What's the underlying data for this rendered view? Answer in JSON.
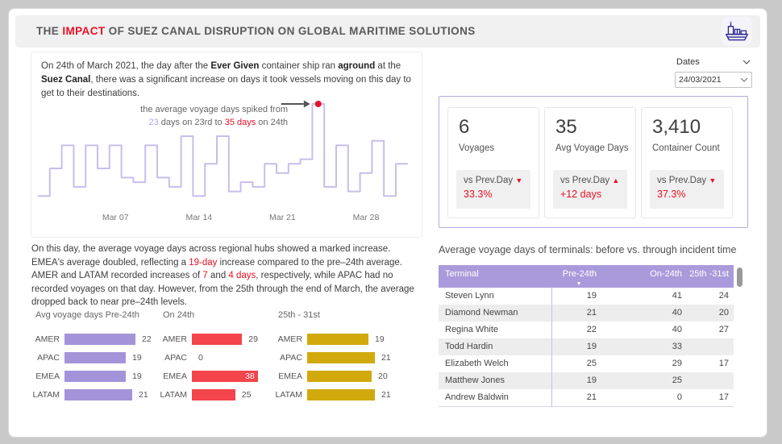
{
  "colors": {
    "accent_red": "#e81123",
    "lavender_line": "#c9bdeb",
    "bar_purple": "#a394da",
    "bar_red": "#f4444c",
    "bar_gold": "#d1a90d",
    "table_header_purple": "#a99bdb"
  },
  "header": {
    "title": [
      {
        "t": "THE "
      },
      {
        "t": "IMPACT",
        "red": true
      },
      {
        "t": " OF SUEZ CANAL DISRUPTION ON GLOBAL MARITIME SOLUTIONS"
      }
    ]
  },
  "intro": {
    "text": [
      {
        "t": "On 24th of March 2021, the day after the "
      },
      {
        "t": "Ever Given",
        "b": true
      },
      {
        "t": " container ship ran "
      },
      {
        "t": "aground",
        "b": true
      },
      {
        "t": " at the "
      },
      {
        "t": "Suez Canal",
        "b": true
      },
      {
        "t": ", there was a significant increase on days it took vessels moving on this day to get to their destinations."
      }
    ]
  },
  "slicer": {
    "label": "Dates",
    "value": "24/03/2021"
  },
  "chart_data": [
    {
      "type": "line",
      "title": "",
      "x": [
        1,
        2,
        3,
        4,
        5,
        6,
        7,
        8,
        9,
        10,
        11,
        12,
        13,
        14,
        15,
        16,
        17,
        18,
        19,
        20,
        21,
        22,
        23,
        24,
        25,
        26,
        27,
        28,
        29,
        30,
        31
      ],
      "values": [
        15,
        21,
        26,
        17,
        26,
        21,
        26,
        19,
        18,
        26,
        19,
        17,
        28,
        15,
        22,
        28,
        16,
        18,
        17,
        22,
        20,
        22,
        23,
        35,
        17,
        26,
        16,
        20,
        27,
        15,
        22
      ],
      "x_tick_labels": [
        {
          "day": 7,
          "label": "Mar 07"
        },
        {
          "day": 14,
          "label": "Mar 14"
        },
        {
          "day": 21,
          "label": "Mar 21"
        },
        {
          "day": 28,
          "label": "Mar 28"
        }
      ],
      "ylim": [
        14,
        36
      ],
      "grid": false,
      "line_color": "#c9bdeb",
      "marker": {
        "day": 24,
        "value": 35,
        "color": "#e8112b"
      },
      "annotation": {
        "line1": "the average voyage days spiked from",
        "line2": [
          {
            "t": "23",
            "purple": true
          },
          {
            "t": " days on 23rd to "
          },
          {
            "t": "35 days",
            "red": true
          },
          {
            "t": " on 24th"
          }
        ]
      }
    },
    {
      "type": "bar",
      "orientation": "horizontal",
      "title": "Avg voyage days Pre-24th",
      "categories": [
        "AMER",
        "APAC",
        "EMEA",
        "LATAM"
      ],
      "values": [
        22,
        19,
        19,
        21
      ],
      "color": "#a394da"
    },
    {
      "type": "bar",
      "orientation": "horizontal",
      "title": "On 24th",
      "categories": [
        "AMER",
        "APAC",
        "EMEA",
        "LATAM"
      ],
      "values": [
        29,
        0,
        38,
        25
      ],
      "color": "#f4444c"
    },
    {
      "type": "bar",
      "orientation": "horizontal",
      "title": "25th - 31st",
      "categories": [
        "AMER",
        "APAC",
        "EMEA",
        "LATAM"
      ],
      "values": [
        19,
        21,
        20,
        21
      ],
      "color": "#d1a90d"
    },
    {
      "type": "table",
      "title": "Average voyage days of terminals: before vs. through incident time",
      "columns": [
        "Terminal",
        "Pre-24th",
        "On-24th",
        "25th -31st"
      ],
      "sort_indicator_column": "Pre-24th",
      "rows": [
        [
          "Steven Lynn",
          "19",
          "41",
          "24"
        ],
        [
          "Diamond Newman",
          "21",
          "40",
          "20"
        ],
        [
          "Regina White",
          "22",
          "40",
          "27"
        ],
        [
          "Todd Hardin",
          "19",
          "33",
          ""
        ],
        [
          "Elizabeth Welch",
          "25",
          "29",
          "17"
        ],
        [
          "Matthew Jones",
          "19",
          "25",
          ""
        ],
        [
          "Andrew Baldwin",
          "21",
          "0",
          "17"
        ]
      ]
    }
  ],
  "kpis": [
    {
      "value": "6",
      "label": "Voyages",
      "badge_label": "vs Prev.Day",
      "arrow": "down",
      "change": "33.3%"
    },
    {
      "value": "35",
      "label": "Avg Voyage Days",
      "badge_label": "vs Prev.Day",
      "arrow": "up",
      "change": "+12 days"
    },
    {
      "value": "3,410",
      "label": "Container Count",
      "badge_label": "vs Prev.Day",
      "arrow": "down",
      "change": "37.3%"
    }
  ],
  "analysis": {
    "text": [
      {
        "t": "On this day, the average voyage days across regional hubs showed a marked increase. EMEA's average doubled, reflecting a "
      },
      {
        "t": "19-day",
        "red": true
      },
      {
        "t": " increase compared to the pre–24th average. AMER and LATAM recorded increases of "
      },
      {
        "t": "7",
        "red": true
      },
      {
        "t": " and "
      },
      {
        "t": "4 days",
        "red": true
      },
      {
        "t": ", respectively, while APAC had no recorded voyages on that day. However, from the 25th through the end of March, the average dropped back to near pre–24th levels."
      }
    ]
  }
}
